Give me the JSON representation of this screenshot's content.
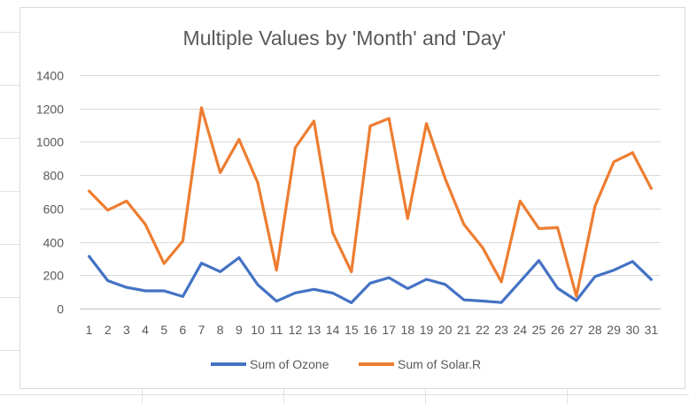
{
  "chart_data": {
    "type": "line",
    "title": "Multiple Values by 'Month' and 'Day'",
    "xlabel": "",
    "ylabel": "",
    "categories": [
      "1",
      "2",
      "3",
      "4",
      "5",
      "6",
      "7",
      "8",
      "9",
      "10",
      "11",
      "12",
      "13",
      "14",
      "15",
      "16",
      "17",
      "18",
      "19",
      "20",
      "21",
      "22",
      "23",
      "24",
      "25",
      "26",
      "27",
      "28",
      "29",
      "30",
      "31"
    ],
    "ylim": [
      0,
      1400
    ],
    "yticks": [
      "0",
      "200",
      "400",
      "600",
      "800",
      "1000",
      "1200",
      "1400"
    ],
    "grid": true,
    "legend": "bottom",
    "series": [
      {
        "name": "Sum of Ozone",
        "color": "#4472c4",
        "values": [
          313,
          167,
          127,
          106,
          106,
          72,
          272,
          221,
          305,
          143,
          44,
          94,
          115,
          93,
          35,
          152,
          185,
          120,
          175,
          145,
          52,
          45,
          36,
          161,
          288,
          122,
          48,
          192,
          230,
          282,
          174
        ]
      },
      {
        "name": "Sum of Solar.R",
        "color": "#ed7d31",
        "values": [
          705,
          590,
          645,
          505,
          270,
          405,
          1205,
          815,
          1015,
          755,
          230,
          965,
          1125,
          455,
          220,
          1095,
          1140,
          540,
          1110,
          780,
          505,
          365,
          160,
          645,
          480,
          485,
          75,
          615,
          880,
          935,
          720
        ]
      }
    ]
  }
}
